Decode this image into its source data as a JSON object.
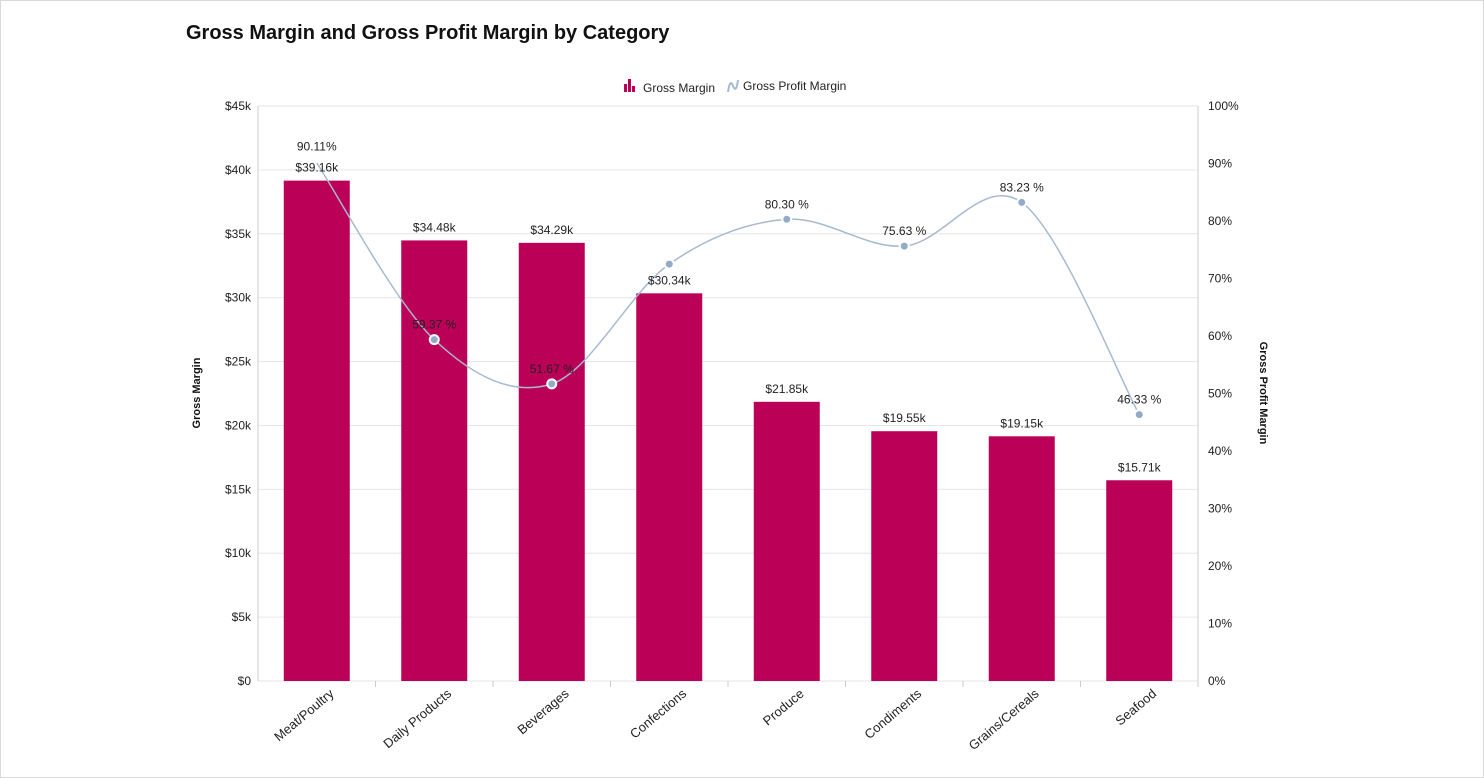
{
  "chart_data": {
    "type": "bar+line",
    "title": "Gross Margin and Gross Profit Margin by Category",
    "categories": [
      "Meat/Poultry",
      "Daily Products",
      "Beverages",
      "Confections",
      "Produce",
      "Condiments",
      "Grains/Cereals",
      "Seafood"
    ],
    "series": [
      {
        "name": "Gross Margin",
        "type": "bar",
        "axis": "left",
        "color": "#bb0058",
        "values": [
          39160,
          34480,
          34290,
          30340,
          21850,
          19550,
          19150,
          15710
        ],
        "labels": [
          "$39.16k",
          "$34.48k",
          "$34.29k",
          "$30.34k",
          "$21.85k",
          "$19.55k",
          "$19.15k",
          "$15.71k"
        ]
      },
      {
        "name": "Gross Profit Margin",
        "type": "line",
        "axis": "right",
        "color": "#a7b9d1",
        "marker_color": "#94abc8",
        "values": [
          90.11,
          59.37,
          51.67,
          72.5,
          80.3,
          75.63,
          83.23,
          46.33
        ],
        "labels": [
          "90.11%",
          "59.37 %",
          "51.67 %",
          "",
          "80.30 %",
          "75.63 %",
          "83.23 %",
          "46.33 %"
        ]
      }
    ],
    "ylabel": "Gross Margin",
    "y2label": "Gross Profit Margin",
    "ylim": [
      0,
      45000
    ],
    "y2lim": [
      0,
      100
    ],
    "yticks": [
      "$0",
      "$5k",
      "$10k",
      "$15k",
      "$20k",
      "$25k",
      "$30k",
      "$35k",
      "$40k",
      "$45k"
    ],
    "y2ticks": [
      "0%",
      "10%",
      "20%",
      "30%",
      "40%",
      "50%",
      "60%",
      "70%",
      "80%",
      "90%",
      "100%"
    ],
    "grid": true,
    "legend": "top-center"
  }
}
